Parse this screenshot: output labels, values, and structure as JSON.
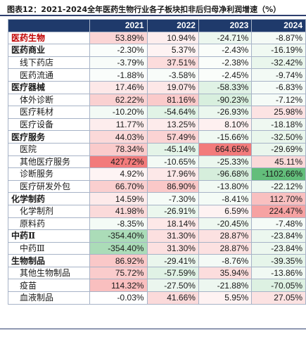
{
  "title": "图表12：2021-2024全年医药生物行业各子板块扣非后归母净利润增速（%）",
  "columns": [
    "",
    "2021",
    "2022",
    "2023",
    "2024"
  ],
  "heat": {
    "max_pos": 427.72,
    "max_neg": -1102.66,
    "pos_color": "#f27b7b",
    "neg_color": "#63be7b"
  },
  "rows": [
    {
      "name": "医药生物",
      "level": 1,
      "red": true,
      "values": [
        "53.89%",
        "10.94%",
        "-24.71%",
        "-8.87%"
      ],
      "nums": [
        53.89,
        10.94,
        -24.71,
        -8.87
      ]
    },
    {
      "name": "医药商业",
      "level": 1,
      "values": [
        "-2.30%",
        "5.37%",
        "-2.43%",
        "-16.19%"
      ],
      "nums": [
        -2.3,
        5.37,
        -2.43,
        -16.19
      ]
    },
    {
      "name": "线下药店",
      "level": 2,
      "values": [
        "-3.79%",
        "37.51%",
        "-2.38%",
        "-32.42%"
      ],
      "nums": [
        -3.79,
        37.51,
        -2.38,
        -32.42
      ]
    },
    {
      "name": "医药流通",
      "level": 2,
      "values": [
        "-1.88%",
        "-3.58%",
        "-2.45%",
        "-9.74%"
      ],
      "nums": [
        -1.88,
        -3.58,
        -2.45,
        -9.74
      ]
    },
    {
      "name": "医疗器械",
      "level": 1,
      "values": [
        "17.46%",
        "19.07%",
        "-58.33%",
        "-6.83%"
      ],
      "nums": [
        17.46,
        19.07,
        -58.33,
        -6.83
      ]
    },
    {
      "name": "体外诊断",
      "level": 2,
      "values": [
        "62.22%",
        "81.16%",
        "-90.23%",
        "-7.12%"
      ],
      "nums": [
        62.22,
        81.16,
        -90.23,
        -7.12
      ]
    },
    {
      "name": "医疗耗材",
      "level": 2,
      "values": [
        "-10.20%",
        "-54.64%",
        "-26.93%",
        "25.98%"
      ],
      "nums": [
        -10.2,
        -54.64,
        -26.93,
        25.98
      ]
    },
    {
      "name": "医疗设备",
      "level": 2,
      "values": [
        "11.77%",
        "13.25%",
        "8.10%",
        "-18.18%"
      ],
      "nums": [
        11.77,
        13.25,
        8.1,
        -18.18
      ]
    },
    {
      "name": "医疗服务",
      "level": 1,
      "values": [
        "44.03%",
        "57.49%",
        "-15.66%",
        "-32.50%"
      ],
      "nums": [
        44.03,
        57.49,
        -15.66,
        -32.5
      ]
    },
    {
      "name": "医院",
      "level": 2,
      "values": [
        "78.34%",
        "-45.14%",
        "664.65%",
        "-29.69%"
      ],
      "nums": [
        78.34,
        -45.14,
        664.65,
        -29.69
      ]
    },
    {
      "name": "其他医疗服务",
      "level": 2,
      "values": [
        "427.72%",
        "-10.65%",
        "-25.33%",
        "45.11%"
      ],
      "nums": [
        427.72,
        -10.65,
        -25.33,
        45.11
      ]
    },
    {
      "name": "诊断服务",
      "level": 2,
      "values": [
        "4.92%",
        "17.96%",
        "-96.68%",
        "-1102.66%"
      ],
      "nums": [
        4.92,
        17.96,
        -96.68,
        -1102.66
      ]
    },
    {
      "name": "医疗研发外包",
      "level": 2,
      "values": [
        "66.70%",
        "86.90%",
        "-13.80%",
        "-22.12%"
      ],
      "nums": [
        66.7,
        86.9,
        -13.8,
        -22.12
      ]
    },
    {
      "name": "化学制药",
      "level": 1,
      "values": [
        "14.59%",
        "-7.30%",
        "-8.41%",
        "112.70%"
      ],
      "nums": [
        14.59,
        -7.3,
        -8.41,
        112.7
      ]
    },
    {
      "name": "化学制剂",
      "level": 2,
      "values": [
        "41.98%",
        "-26.91%",
        "6.59%",
        "224.47%"
      ],
      "nums": [
        41.98,
        -26.91,
        6.59,
        224.47
      ]
    },
    {
      "name": "原料药",
      "level": 2,
      "values": [
        "-8.35%",
        "18.14%",
        "-20.45%",
        "-7.48%"
      ],
      "nums": [
        -8.35,
        18.14,
        -20.45,
        -7.48
      ]
    },
    {
      "name": "中药Ⅱ",
      "level": 1,
      "values": [
        "-354.40%",
        "31.30%",
        "28.87%",
        "-23.84%"
      ],
      "nums": [
        -354.4,
        31.3,
        28.87,
        -23.84
      ]
    },
    {
      "name": "中药Ⅲ",
      "level": 2,
      "values": [
        "-354.40%",
        "31.30%",
        "28.87%",
        "-23.84%"
      ],
      "nums": [
        -354.4,
        31.3,
        28.87,
        -23.84
      ]
    },
    {
      "name": "生物制品",
      "level": 1,
      "values": [
        "86.92%",
        "-29.41%",
        "-8.76%",
        "-39.35%"
      ],
      "nums": [
        86.92,
        -29.41,
        -8.76,
        -39.35
      ]
    },
    {
      "name": "其他生物制品",
      "level": 2,
      "values": [
        "75.72%",
        "-57.59%",
        "35.94%",
        "-13.86%"
      ],
      "nums": [
        75.72,
        -57.59,
        35.94,
        -13.86
      ]
    },
    {
      "name": "疫苗",
      "level": 2,
      "values": [
        "114.32%",
        "-27.50%",
        "-21.88%",
        "-70.05%"
      ],
      "nums": [
        114.32,
        -27.5,
        -21.88,
        -70.05
      ]
    },
    {
      "name": "血液制品",
      "level": 2,
      "values": [
        "-0.03%",
        "41.66%",
        "5.95%",
        "27.05%"
      ],
      "nums": [
        -0.03,
        41.66,
        5.95,
        27.05
      ]
    }
  ]
}
